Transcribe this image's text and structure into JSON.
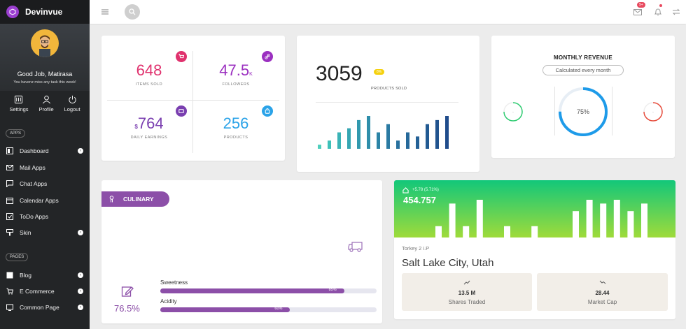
{
  "app": {
    "brand": "Devinvue"
  },
  "profile": {
    "greeting": "Good Job, Matirasa",
    "subtitle": "You havenz miss any task this week!"
  },
  "quick": [
    {
      "label": "Settings",
      "icon": "settings-icon"
    },
    {
      "label": "Profile",
      "icon": "user-icon"
    },
    {
      "label": "Logout",
      "icon": "power-icon"
    }
  ],
  "sections": {
    "apps": "APPS",
    "pages": "PAGES"
  },
  "nav_apps": [
    {
      "label": "Dashboard",
      "icon": "dashboard-icon",
      "badge": "‹"
    },
    {
      "label": "Mail Apps",
      "icon": "mail-icon"
    },
    {
      "label": "Chat Apps",
      "icon": "chat-icon"
    },
    {
      "label": "Calendar Apps",
      "icon": "calendar-icon"
    },
    {
      "label": "ToDo Apps",
      "icon": "todo-icon"
    },
    {
      "label": "Skin",
      "icon": "brush-icon",
      "badge": "‹"
    }
  ],
  "nav_pages": [
    {
      "label": "Blog",
      "icon": "blog-icon",
      "badge": "‹"
    },
    {
      "label": "E Commerce",
      "icon": "cart-icon",
      "badge": "‹"
    },
    {
      "label": "Common Page",
      "icon": "page-icon",
      "badge": "‹"
    }
  ],
  "topbar": {
    "notif_badge": "9+"
  },
  "stats": [
    {
      "value": "648",
      "label": "ITEMS SOLD",
      "color": "#e0326e",
      "icon_bg": "#e0326e",
      "icon": "cart-icon"
    },
    {
      "value": "47.5",
      "suffix": "K",
      "label": "FOLLOWERS",
      "color": "#9b30c0",
      "icon_bg": "#9b30c0",
      "icon": "link-icon"
    },
    {
      "prefix": "$",
      "value": "764",
      "label": "DAILY EARNINGS",
      "color": "#7a3fb0",
      "icon_bg": "#7a3fb0",
      "icon": "wallet-icon"
    },
    {
      "value": "256",
      "label": "PRODUCTS",
      "color": "#2ba3e8",
      "icon_bg": "#2ba3e8",
      "icon": "bag-icon"
    }
  ],
  "products": {
    "value": "3059",
    "badge": "8%",
    "label": "PRODUCTS SOLD"
  },
  "chart_data": {
    "type": "bar",
    "values": [
      1,
      2,
      4,
      5,
      7,
      8,
      4,
      6,
      2,
      4,
      3,
      6,
      7,
      8
    ],
    "colors": [
      "#4fcfbd",
      "#3fc1b9",
      "#3ab3b6",
      "#35a6b2",
      "#3199ae",
      "#2e8eaa",
      "#2b84a6",
      "#2a7aa2",
      "#28719e",
      "#26699a",
      "#246196",
      "#225a92",
      "#21538e",
      "#204c8b"
    ]
  },
  "revenue": {
    "title": "MONTHLY REVENUE",
    "pill": "Calculated every month",
    "percent": 75,
    "percent_label": "75%"
  },
  "culinary": {
    "tag": "CULINARY",
    "percent": "76.5%",
    "bars": [
      {
        "label": "Sweetness",
        "value": 85,
        "value_label": "85%"
      },
      {
        "label": "Acidity",
        "value": 60,
        "value_label": "60%"
      }
    ]
  },
  "stock": {
    "change": "+5.78 (5.71%)",
    "value": "454.757",
    "bars": [
      3,
      9,
      3,
      10,
      0,
      3,
      0,
      3,
      0,
      0,
      7,
      10,
      9,
      10,
      7,
      9,
      3,
      7,
      3
    ],
    "meta": "Torkey 2  i.P",
    "city": "Salt Lake City, Utah",
    "tiles": [
      {
        "value": "13.5 M",
        "label": "Shares Traded",
        "icon": "trend-up-icon"
      },
      {
        "value": "28.44",
        "label": "Market Cap",
        "icon": "trend-down-icon"
      }
    ]
  }
}
